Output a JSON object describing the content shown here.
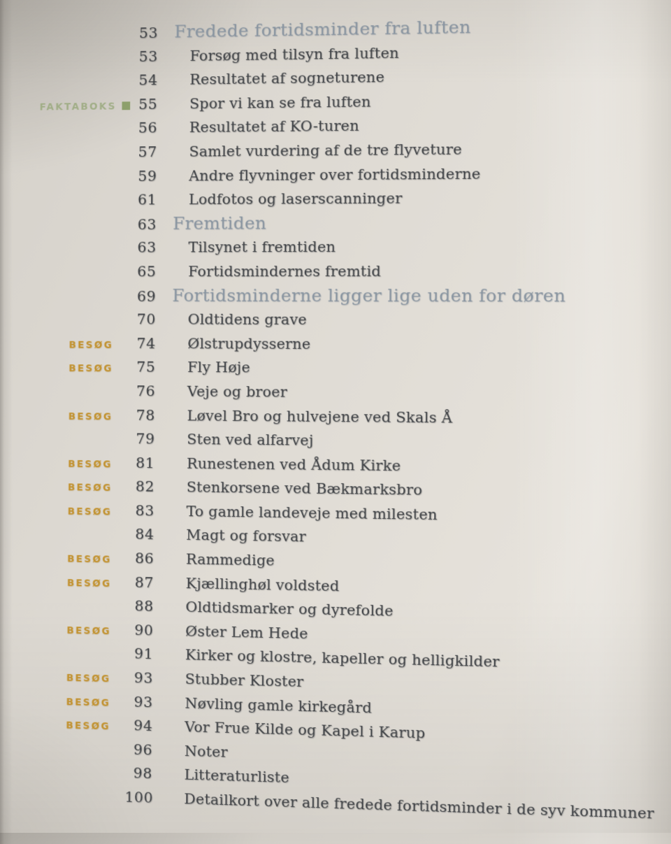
{
  "page": {
    "kind": "book-table-of-contents-photo",
    "language": "Danish"
  },
  "labels": {
    "besog": "BESØG",
    "faktaboks": "FAKTABOKS"
  },
  "colors": {
    "paper": "#dedad3",
    "ink": "#3d4044",
    "chapter_heading": "#8894a0",
    "besog_tag": "#c2922f",
    "faktaboks_tag": "#a0ad86",
    "faktaboks_square": "#8da06c"
  },
  "toc": {
    "rows": [
      {
        "label": "",
        "page": "53",
        "title": "Fredede fortidsminder fra luften",
        "level": "chapter"
      },
      {
        "label": "",
        "page": "53",
        "title": "Forsøg med tilsyn fra luften",
        "level": "entry"
      },
      {
        "label": "",
        "page": "54",
        "title": "Resultatet af sogneturene",
        "level": "entry"
      },
      {
        "label": "faktaboks",
        "page": "55",
        "title": "Spor vi kan se fra luften",
        "level": "entry"
      },
      {
        "label": "",
        "page": "56",
        "title": "Resultatet af KO-turen",
        "level": "entry"
      },
      {
        "label": "",
        "page": "57",
        "title": "Samlet vurdering af de tre flyveture",
        "level": "entry"
      },
      {
        "label": "",
        "page": "59",
        "title": "Andre flyvninger over fortidsminderne",
        "level": "entry"
      },
      {
        "label": "",
        "page": "61",
        "title": "Lodfotos og laserscanninger",
        "level": "entry"
      },
      {
        "label": "",
        "page": "63",
        "title": "Fremtiden",
        "level": "chapter"
      },
      {
        "label": "",
        "page": "63",
        "title": "Tilsynet i fremtiden",
        "level": "entry"
      },
      {
        "label": "",
        "page": "65",
        "title": "Fortidsmindernes fremtid",
        "level": "entry"
      },
      {
        "label": "",
        "page": "69",
        "title": "Fortidsminderne ligger lige uden for døren",
        "level": "chapter"
      },
      {
        "label": "",
        "page": "70",
        "title": "Oldtidens grave",
        "level": "entry"
      },
      {
        "label": "besog",
        "page": "74",
        "title": "Ølstrupdysserne",
        "level": "entry"
      },
      {
        "label": "besog",
        "page": "75",
        "title": "Fly Høje",
        "level": "entry"
      },
      {
        "label": "",
        "page": "76",
        "title": "Veje og broer",
        "level": "entry"
      },
      {
        "label": "besog",
        "page": "78",
        "title": "Løvel Bro og hulvejene ved Skals Å",
        "level": "entry"
      },
      {
        "label": "",
        "page": "79",
        "title": "Sten ved alfarvej",
        "level": "entry"
      },
      {
        "label": "besog",
        "page": "81",
        "title": "Runestenen ved Ådum Kirke",
        "level": "entry"
      },
      {
        "label": "besog",
        "page": "82",
        "title": "Stenkorsene ved Bækmarksbro",
        "level": "entry"
      },
      {
        "label": "besog",
        "page": "83",
        "title": "To gamle landeveje med milesten",
        "level": "entry"
      },
      {
        "label": "",
        "page": "84",
        "title": "Magt og forsvar",
        "level": "entry"
      },
      {
        "label": "besog",
        "page": "86",
        "title": "Rammedige",
        "level": "entry"
      },
      {
        "label": "besog",
        "page": "87",
        "title": "Kjællinghøl voldsted",
        "level": "entry"
      },
      {
        "label": "",
        "page": "88",
        "title": "Oldtidsmarker og dyrefolde",
        "level": "entry"
      },
      {
        "label": "besog",
        "page": "90",
        "title": "Øster Lem Hede",
        "level": "entry"
      },
      {
        "label": "",
        "page": "91",
        "title": "Kirker og klostre, kapeller og helligkilder",
        "level": "entry"
      },
      {
        "label": "besog",
        "page": "93",
        "title": "Stubber Kloster",
        "level": "entry"
      },
      {
        "label": "besog",
        "page": "93",
        "title": "Nøvling gamle kirkegård",
        "level": "entry"
      },
      {
        "label": "besog",
        "page": "94",
        "title": "Vor Frue Kilde og Kapel i Karup",
        "level": "entry"
      },
      {
        "label": "",
        "page": "96",
        "title": "Noter",
        "level": "entry"
      },
      {
        "label": "",
        "page": "98",
        "title": "Litteraturliste",
        "level": "entry"
      },
      {
        "label": "",
        "page": "100",
        "title": "Detailkort over alle fredede fortidsminder i de syv kommuner",
        "level": "entry"
      }
    ]
  }
}
